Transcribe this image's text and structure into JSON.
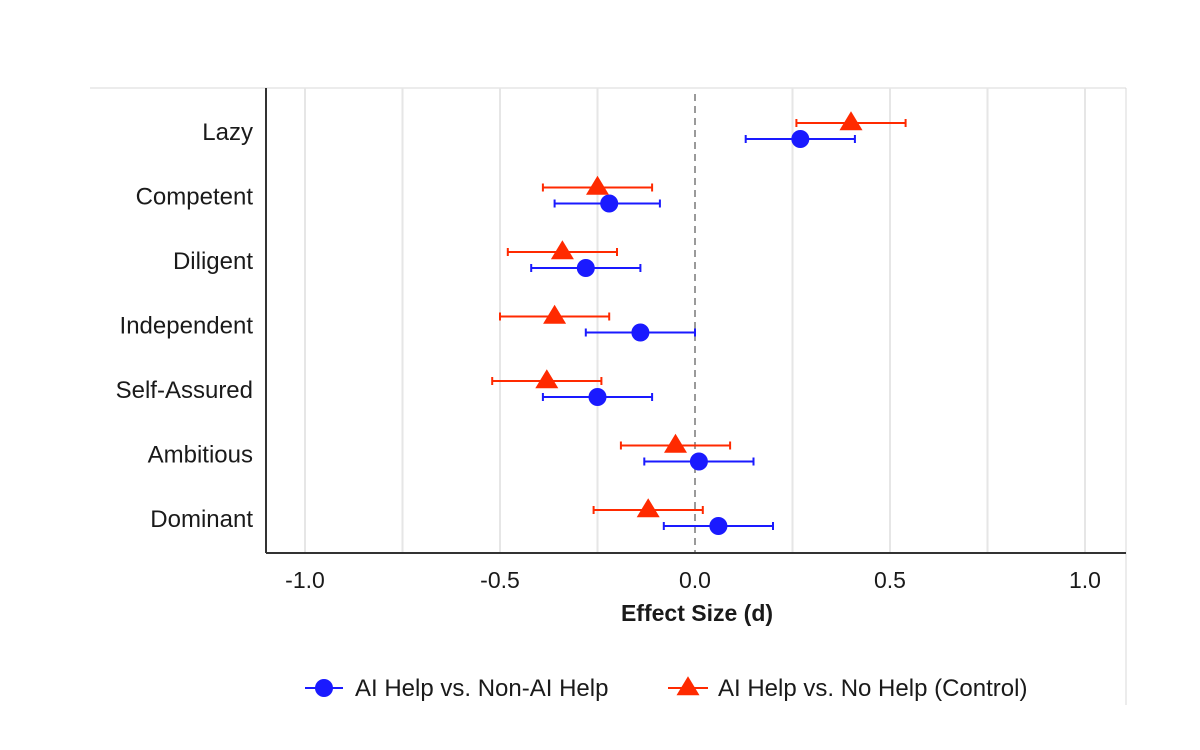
{
  "chart_data": {
    "type": "scatter",
    "subtype": "forest-plot",
    "title": "",
    "xlabel": "Effect Size (d)",
    "ylabel": "",
    "xlim": [
      -1.1,
      1.1
    ],
    "xticks": [
      -1.0,
      -0.5,
      0.0,
      0.5,
      1.0
    ],
    "xtick_labels": [
      "-1.0",
      "-0.5",
      "0.0",
      "0.5",
      "1.0"
    ],
    "reference_line": 0,
    "categories": [
      "Lazy",
      "Competent",
      "Diligent",
      "Independent",
      "Self-Assured",
      "Ambitious",
      "Dominant"
    ],
    "series": [
      {
        "name": "AI Help vs. Non-AI Help",
        "marker": "circle",
        "color": "#1a1aff",
        "estimates": [
          0.27,
          -0.22,
          -0.28,
          -0.14,
          -0.25,
          0.01,
          0.06
        ],
        "ci_low": [
          0.13,
          -0.36,
          -0.42,
          -0.28,
          -0.39,
          -0.13,
          -0.08
        ],
        "ci_high": [
          0.41,
          -0.09,
          -0.14,
          0.0,
          -0.11,
          0.15,
          0.2
        ]
      },
      {
        "name": "AI Help vs. No Help (Control)",
        "marker": "triangle",
        "color": "#ff2a00",
        "estimates": [
          0.4,
          -0.25,
          -0.34,
          -0.36,
          -0.38,
          -0.05,
          -0.12
        ],
        "ci_low": [
          0.26,
          -0.39,
          -0.48,
          -0.5,
          -0.52,
          -0.19,
          -0.26
        ],
        "ci_high": [
          0.54,
          -0.11,
          -0.2,
          -0.22,
          -0.24,
          0.09,
          0.02
        ]
      }
    ],
    "legend_position": "bottom"
  }
}
